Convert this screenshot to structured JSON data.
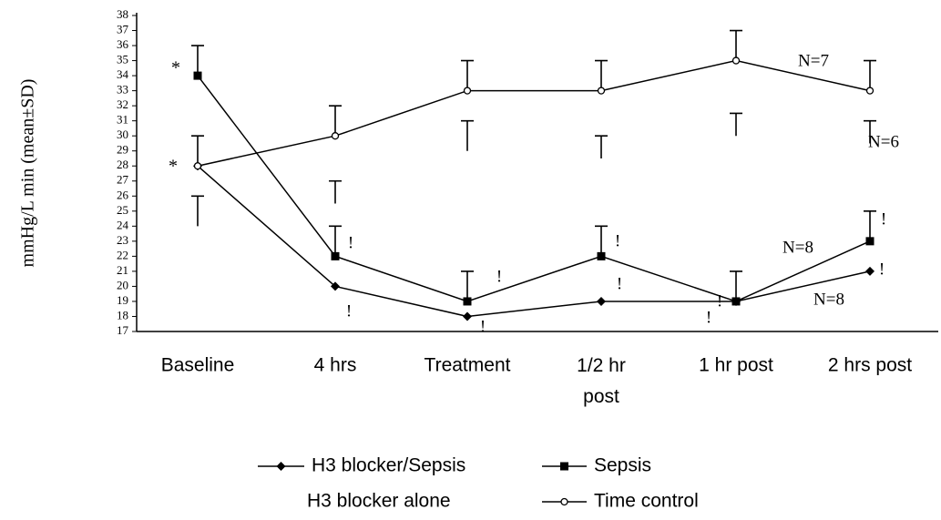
{
  "chart_data": {
    "type": "line",
    "y_label": "mmHg/L min (mean±SD)",
    "categories": [
      "Baseline",
      "4 hrs",
      "Treatment",
      "1/2 hr post",
      "1 hr post",
      "2 hrs post"
    ],
    "ylim": [
      17,
      38
    ],
    "yticks": [
      17,
      18,
      19,
      20,
      21,
      22,
      23,
      24,
      25,
      26,
      27,
      28,
      29,
      30,
      31,
      32,
      33,
      34,
      35,
      36,
      37,
      38
    ],
    "series": [
      {
        "name": "H3 blocker/Sepsis",
        "color": "#000000",
        "marker": "diamond",
        "line": true,
        "values": [
          28,
          20,
          18,
          19,
          19,
          21
        ],
        "errors": [
          2,
          null,
          null,
          null,
          null,
          null
        ]
      },
      {
        "name": "Sepsis",
        "color": "#000000",
        "marker": "square",
        "line": true,
        "values": [
          34,
          22,
          19,
          22,
          19,
          23
        ],
        "errors": [
          2,
          2,
          2,
          2,
          2,
          2
        ]
      },
      {
        "name": "H3 blocker alone",
        "color": "#000000",
        "marker": "none",
        "line": false,
        "values": [
          24,
          25.5,
          29,
          28.5,
          30,
          29.5
        ],
        "errors": [
          2,
          1.5,
          2,
          1.5,
          1.5,
          1.5
        ]
      },
      {
        "name": "Time control",
        "color": "#000000",
        "marker": "circle",
        "line": true,
        "values": [
          28,
          30,
          33,
          33,
          35,
          33
        ],
        "errors": [
          null,
          2,
          2,
          2,
          2,
          2
        ]
      }
    ],
    "annotations": [
      "*",
      "*",
      "!",
      "!",
      "!",
      "!",
      "!",
      "!",
      "!",
      "!",
      "!",
      "!",
      "N=7",
      "N=6",
      "N=8",
      "N=8"
    ]
  }
}
